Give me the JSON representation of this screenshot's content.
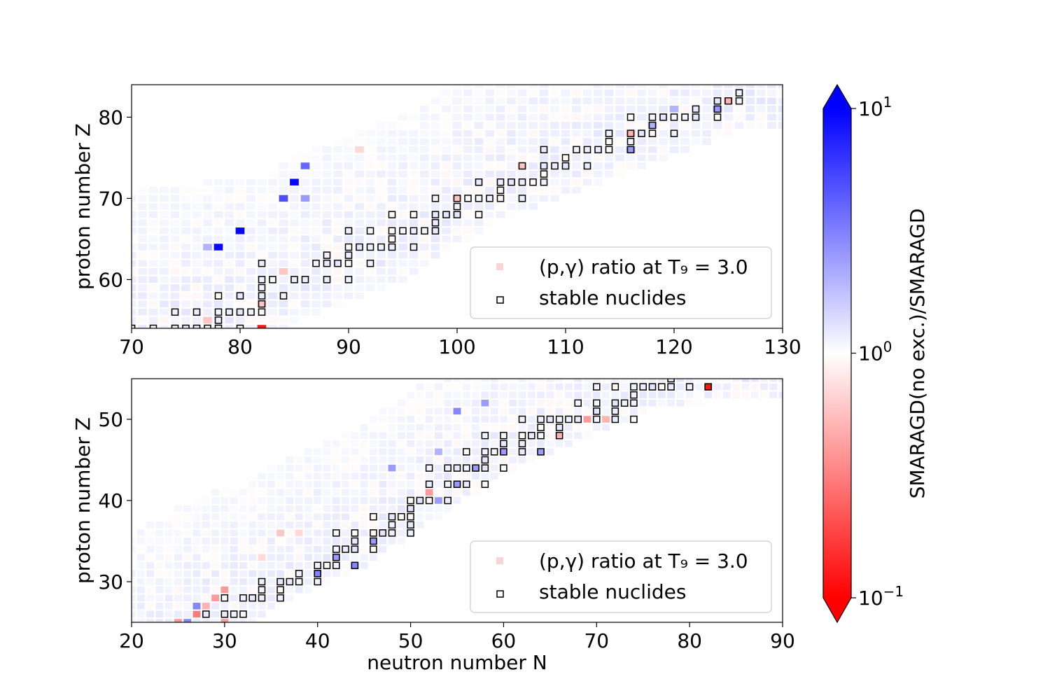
{
  "chart_data": [
    {
      "type": "heatmap",
      "panel": "top",
      "xlabel": "",
      "ylabel": "proton number Z",
      "xlim": [
        70,
        130
      ],
      "ylim": [
        54,
        84
      ],
      "xticks": [
        70,
        80,
        90,
        100,
        110,
        120,
        130
      ],
      "yticks": [
        60,
        70,
        80
      ],
      "legend": {
        "position": "lower-right",
        "entries": [
          {
            "kind": "ratio",
            "text": "(p,γ) ratio at T₉ = 3.0"
          },
          {
            "kind": "stable",
            "text": "stable nuclides"
          }
        ]
      },
      "valley": [
        [
          70,
          54
        ],
        [
          76,
          55
        ],
        [
          82,
          56
        ],
        [
          86,
          59
        ],
        [
          90,
          61
        ],
        [
          96,
          64
        ],
        [
          100,
          68
        ],
        [
          104,
          71
        ],
        [
          108,
          73
        ],
        [
          112,
          75
        ],
        [
          116,
          77
        ],
        [
          120,
          79
        ],
        [
          124,
          81
        ],
        [
          126,
          82
        ]
      ],
      "wing_neg": 3,
      "wing_pos": 16,
      "ratio_highlights": [
        {
          "N": 78,
          "Z": 64,
          "r": 9.5
        },
        {
          "N": 80,
          "Z": 66,
          "r": 9.5
        },
        {
          "N": 85,
          "Z": 72,
          "r": 9.5
        },
        {
          "N": 84,
          "Z": 70,
          "r": 5.0
        },
        {
          "N": 86,
          "Z": 74,
          "r": 4.0
        },
        {
          "N": 86,
          "Z": 70,
          "r": 2.5
        },
        {
          "N": 77,
          "Z": 64,
          "r": 2.0
        },
        {
          "N": 91,
          "Z": 76,
          "r": 0.7
        },
        {
          "N": 84,
          "Z": 61,
          "r": 0.6
        },
        {
          "N": 82,
          "Z": 54,
          "r": 0.12
        },
        {
          "N": 116,
          "Z": 78,
          "r": 0.5
        },
        {
          "N": 125,
          "Z": 82,
          "r": 0.5
        },
        {
          "N": 106,
          "Z": 74,
          "r": 0.6
        },
        {
          "N": 100,
          "Z": 70,
          "r": 0.6
        },
        {
          "N": 120,
          "Z": 81,
          "r": 2.0
        },
        {
          "N": 118,
          "Z": 79,
          "r": 2.0
        },
        {
          "N": 124,
          "Z": 81,
          "r": 2.5
        },
        {
          "N": 116,
          "Z": 76,
          "r": 2.5
        },
        {
          "N": 82,
          "Z": 57,
          "r": 0.6
        },
        {
          "N": 77,
          "Z": 55,
          "r": 0.6
        }
      ],
      "stable_nuclides": [
        [
          70,
          54
        ],
        [
          72,
          54
        ],
        [
          74,
          54
        ],
        [
          75,
          54
        ],
        [
          76,
          54
        ],
        [
          77,
          54
        ],
        [
          78,
          54
        ],
        [
          80,
          54
        ],
        [
          74,
          56
        ],
        [
          76,
          56
        ],
        [
          78,
          56
        ],
        [
          79,
          56
        ],
        [
          80,
          56
        ],
        [
          81,
          56
        ],
        [
          82,
          56
        ],
        [
          78,
          55
        ],
        [
          82,
          57
        ],
        [
          78,
          58
        ],
        [
          80,
          58
        ],
        [
          82,
          58
        ],
        [
          82,
          59
        ],
        [
          82,
          60
        ],
        [
          83,
          60
        ],
        [
          82,
          62
        ],
        [
          84,
          58
        ],
        [
          85,
          60
        ],
        [
          86,
          60
        ],
        [
          88,
          60
        ],
        [
          90,
          60
        ],
        [
          87,
          62
        ],
        [
          88,
          62
        ],
        [
          89,
          62
        ],
        [
          90,
          62
        ],
        [
          92,
          62
        ],
        [
          88,
          63
        ],
        [
          90,
          63
        ],
        [
          90,
          64
        ],
        [
          91,
          64
        ],
        [
          92,
          64
        ],
        [
          93,
          64
        ],
        [
          94,
          64
        ],
        [
          96,
          64
        ],
        [
          94,
          65
        ],
        [
          90,
          66
        ],
        [
          92,
          66
        ],
        [
          94,
          66
        ],
        [
          95,
          66
        ],
        [
          96,
          66
        ],
        [
          97,
          66
        ],
        [
          98,
          66
        ],
        [
          98,
          67
        ],
        [
          94,
          68
        ],
        [
          96,
          68
        ],
        [
          98,
          68
        ],
        [
          99,
          68
        ],
        [
          100,
          68
        ],
        [
          102,
          68
        ],
        [
          100,
          69
        ],
        [
          98,
          70
        ],
        [
          100,
          70
        ],
        [
          101,
          70
        ],
        [
          102,
          70
        ],
        [
          103,
          70
        ],
        [
          104,
          70
        ],
        [
          106,
          70
        ],
        [
          104,
          71
        ],
        [
          102,
          72
        ],
        [
          104,
          72
        ],
        [
          105,
          72
        ],
        [
          106,
          72
        ],
        [
          107,
          72
        ],
        [
          108,
          72
        ],
        [
          108,
          73
        ],
        [
          106,
          74
        ],
        [
          108,
          74
        ],
        [
          109,
          74
        ],
        [
          110,
          74
        ],
        [
          112,
          74
        ],
        [
          110,
          75
        ],
        [
          108,
          76
        ],
        [
          111,
          76
        ],
        [
          112,
          76
        ],
        [
          113,
          76
        ],
        [
          114,
          76
        ],
        [
          116,
          76
        ],
        [
          114,
          77
        ],
        [
          116,
          77
        ],
        [
          114,
          78
        ],
        [
          116,
          78
        ],
        [
          117,
          78
        ],
        [
          118,
          78
        ],
        [
          120,
          78
        ],
        [
          118,
          79
        ],
        [
          116,
          80
        ],
        [
          118,
          80
        ],
        [
          119,
          80
        ],
        [
          120,
          80
        ],
        [
          121,
          80
        ],
        [
          122,
          80
        ],
        [
          124,
          80
        ],
        [
          122,
          81
        ],
        [
          124,
          81
        ],
        [
          124,
          82
        ],
        [
          125,
          82
        ],
        [
          126,
          82
        ],
        [
          126,
          83
        ]
      ]
    },
    {
      "type": "heatmap",
      "panel": "bottom",
      "xlabel": "neutron number N",
      "ylabel": "proton number Z",
      "xlim": [
        20,
        90
      ],
      "ylim": [
        25,
        55
      ],
      "xticks": [
        20,
        30,
        40,
        50,
        60,
        70,
        80,
        90
      ],
      "yticks": [
        30,
        40,
        50
      ],
      "legend": {
        "position": "lower-right",
        "entries": [
          {
            "kind": "ratio",
            "text": "(p,γ) ratio at T₉ = 3.0"
          },
          {
            "kind": "stable",
            "text": "stable nuclides"
          }
        ]
      },
      "valley": [
        [
          20,
          21
        ],
        [
          28,
          26
        ],
        [
          32,
          27
        ],
        [
          36,
          30
        ],
        [
          40,
          32
        ],
        [
          44,
          34
        ],
        [
          48,
          37
        ],
        [
          52,
          40
        ],
        [
          56,
          43
        ],
        [
          60,
          46
        ],
        [
          64,
          48
        ],
        [
          68,
          50
        ],
        [
          72,
          52
        ],
        [
          76,
          54
        ],
        [
          82,
          55
        ]
      ],
      "wing_neg": 2,
      "wing_pos": 14,
      "ratio_highlights": [
        {
          "N": 27,
          "Z": 27,
          "r": 3.0
        },
        {
          "N": 26,
          "Z": 25,
          "r": 3.0
        },
        {
          "N": 27,
          "Z": 26,
          "r": 0.3
        },
        {
          "N": 28,
          "Z": 27,
          "r": 0.5
        },
        {
          "N": 29,
          "Z": 28,
          "r": 0.4
        },
        {
          "N": 30,
          "Z": 29,
          "r": 0.4
        },
        {
          "N": 25,
          "Z": 25,
          "r": 0.4
        },
        {
          "N": 30,
          "Z": 25,
          "r": 0.4
        },
        {
          "N": 36,
          "Z": 36,
          "r": 0.6
        },
        {
          "N": 34,
          "Z": 33,
          "r": 0.7
        },
        {
          "N": 38,
          "Z": 36,
          "r": 0.7
        },
        {
          "N": 44,
          "Z": 32,
          "r": 3.0
        },
        {
          "N": 40,
          "Z": 31,
          "r": 3.0
        },
        {
          "N": 42,
          "Z": 33,
          "r": 2.5
        },
        {
          "N": 46,
          "Z": 35,
          "r": 2.5
        },
        {
          "N": 48,
          "Z": 34,
          "r": 2.5
        },
        {
          "N": 48,
          "Z": 44,
          "r": 2.5
        },
        {
          "N": 52,
          "Z": 41,
          "r": 0.4
        },
        {
          "N": 56,
          "Z": 40,
          "r": 0.4
        },
        {
          "N": 53,
          "Z": 40,
          "r": 2.5
        },
        {
          "N": 55,
          "Z": 42,
          "r": 2.5
        },
        {
          "N": 55,
          "Z": 51,
          "r": 3.0
        },
        {
          "N": 57,
          "Z": 44,
          "r": 2.5
        },
        {
          "N": 58,
          "Z": 52,
          "r": 2.5
        },
        {
          "N": 60,
          "Z": 46,
          "r": 2.5
        },
        {
          "N": 64,
          "Z": 46,
          "r": 2.5
        },
        {
          "N": 66,
          "Z": 48,
          "r": 0.5
        },
        {
          "N": 69,
          "Z": 50,
          "r": 0.4
        },
        {
          "N": 71,
          "Z": 50,
          "r": 0.5
        },
        {
          "N": 82,
          "Z": 54,
          "r": 0.12
        },
        {
          "N": 53,
          "Z": 46,
          "r": 2.0
        }
      ],
      "stable_nuclides": [
        [
          28,
          26
        ],
        [
          30,
          26
        ],
        [
          31,
          26
        ],
        [
          32,
          26
        ],
        [
          30,
          28
        ],
        [
          32,
          28
        ],
        [
          33,
          28
        ],
        [
          34,
          28
        ],
        [
          36,
          28
        ],
        [
          34,
          29
        ],
        [
          36,
          29
        ],
        [
          34,
          30
        ],
        [
          36,
          30
        ],
        [
          37,
          30
        ],
        [
          38,
          30
        ],
        [
          40,
          30
        ],
        [
          38,
          31
        ],
        [
          40,
          31
        ],
        [
          40,
          32
        ],
        [
          41,
          32
        ],
        [
          42,
          32
        ],
        [
          44,
          32
        ],
        [
          42,
          33
        ],
        [
          42,
          34
        ],
        [
          43,
          34
        ],
        [
          44,
          34
        ],
        [
          46,
          34
        ],
        [
          44,
          35
        ],
        [
          46,
          35
        ],
        [
          42,
          36
        ],
        [
          44,
          36
        ],
        [
          46,
          36
        ],
        [
          47,
          36
        ],
        [
          48,
          36
        ],
        [
          50,
          36
        ],
        [
          48,
          37
        ],
        [
          50,
          37
        ],
        [
          46,
          38
        ],
        [
          48,
          38
        ],
        [
          49,
          38
        ],
        [
          50,
          38
        ],
        [
          50,
          39
        ],
        [
          50,
          40
        ],
        [
          51,
          40
        ],
        [
          52,
          40
        ],
        [
          54,
          40
        ],
        [
          52,
          42
        ],
        [
          54,
          42
        ],
        [
          55,
          42
        ],
        [
          56,
          42
        ],
        [
          58,
          42
        ],
        [
          52,
          44
        ],
        [
          54,
          44
        ],
        [
          55,
          44
        ],
        [
          56,
          44
        ],
        [
          57,
          44
        ],
        [
          58,
          44
        ],
        [
          60,
          44
        ],
        [
          58,
          45
        ],
        [
          56,
          46
        ],
        [
          58,
          46
        ],
        [
          59,
          46
        ],
        [
          60,
          46
        ],
        [
          62,
          46
        ],
        [
          64,
          46
        ],
        [
          60,
          47
        ],
        [
          62,
          47
        ],
        [
          58,
          48
        ],
        [
          60,
          48
        ],
        [
          62,
          48
        ],
        [
          63,
          48
        ],
        [
          64,
          48
        ],
        [
          66,
          48
        ],
        [
          64,
          49
        ],
        [
          66,
          49
        ],
        [
          62,
          50
        ],
        [
          64,
          50
        ],
        [
          65,
          50
        ],
        [
          66,
          50
        ],
        [
          67,
          50
        ],
        [
          68,
          50
        ],
        [
          70,
          50
        ],
        [
          72,
          50
        ],
        [
          74,
          50
        ],
        [
          70,
          51
        ],
        [
          72,
          51
        ],
        [
          68,
          52
        ],
        [
          70,
          52
        ],
        [
          72,
          52
        ],
        [
          73,
          52
        ],
        [
          74,
          52
        ],
        [
          74,
          53
        ],
        [
          70,
          54
        ],
        [
          72,
          54
        ],
        [
          74,
          54
        ],
        [
          75,
          54
        ],
        [
          76,
          54
        ],
        [
          77,
          54
        ],
        [
          78,
          54
        ],
        [
          80,
          54
        ],
        [
          82,
          54
        ],
        [
          78,
          55
        ]
      ]
    },
    {
      "type": "colorbar",
      "label": "SMARAGD(no exc.)/SMARAGD",
      "scale": "log",
      "range": [
        0.1,
        10
      ],
      "extend": "both",
      "ticks": [
        {
          "value": 10,
          "base": "10",
          "exp": "1"
        },
        {
          "value": 1,
          "base": "10",
          "exp": "0"
        },
        {
          "value": 0.1,
          "base": "10",
          "exp": "−1"
        }
      ],
      "colors": {
        "low": "#ff0000",
        "mid": "#ffffff",
        "high": "#0000ff"
      }
    }
  ]
}
